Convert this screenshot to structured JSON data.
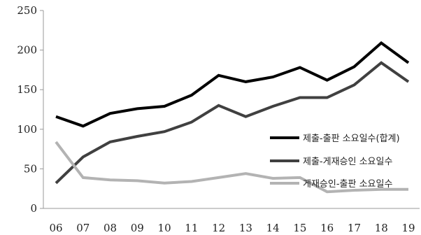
{
  "chart_data": {
    "type": "line",
    "title": "",
    "xlabel": "",
    "ylabel": "",
    "x": [
      "06",
      "07",
      "08",
      "09",
      "10",
      "11",
      "12",
      "13",
      "14",
      "15",
      "16",
      "17",
      "18",
      "19"
    ],
    "ylim": [
      0,
      250
    ],
    "yticks": [
      0,
      50,
      100,
      150,
      200,
      250
    ],
    "grid": false,
    "legend_position": "right",
    "series": [
      {
        "name": "제출-출판 소요일수(합계)",
        "color": "#000000",
        "values": [
          116,
          104,
          120,
          126,
          129,
          143,
          168,
          160,
          166,
          178,
          162,
          179,
          209,
          184
        ]
      },
      {
        "name": "제출-게재승인 소요일수",
        "color": "#404040",
        "values": [
          32,
          65,
          84,
          91,
          97,
          109,
          130,
          116,
          129,
          140,
          140,
          156,
          184,
          160
        ]
      },
      {
        "name": "게재승인-출판 소요일수",
        "color": "#b3b3b3",
        "values": [
          84,
          39,
          36,
          35,
          32,
          34,
          39,
          44,
          38,
          39,
          21,
          23,
          24,
          24
        ]
      }
    ]
  }
}
